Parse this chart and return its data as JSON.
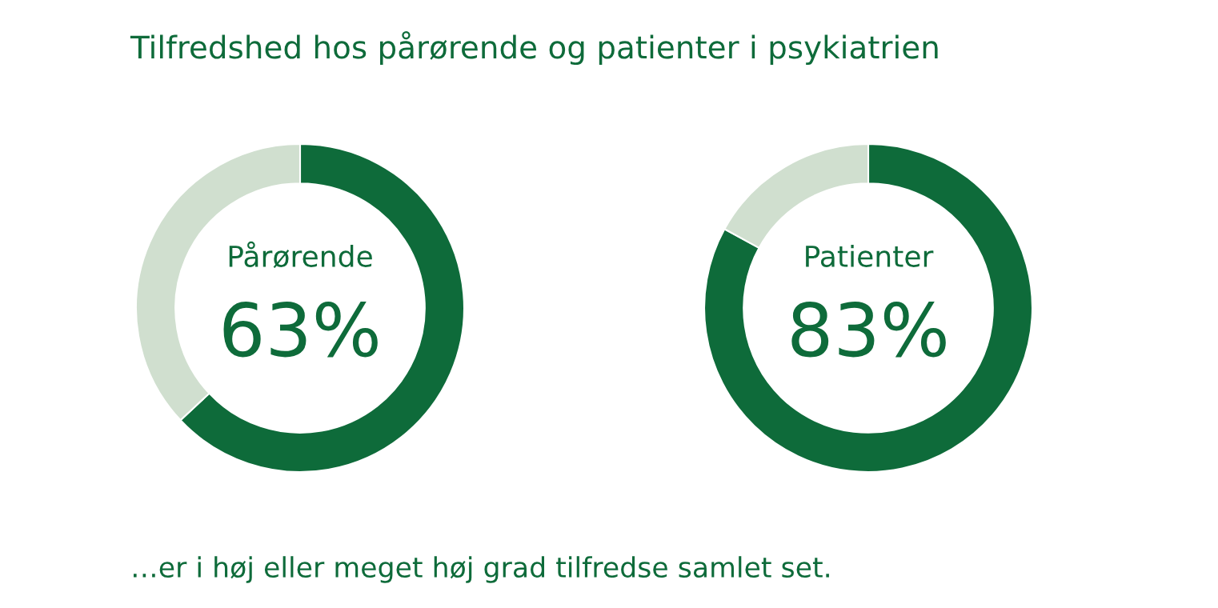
{
  "chart_data": [
    {
      "type": "donut",
      "title": "Pårørende",
      "categories": [
        null,
        null
      ],
      "values": [
        63,
        37
      ],
      "colors": [
        "#0e6b3a",
        "#d0dfcf"
      ],
      "value_labels": [
        "63%",
        null
      ],
      "annotations": [
        "Tilfredshed hos pårørende og patienter i psykiatrien"
      ]
    },
    {
      "type": "donut",
      "title": "Patienter",
      "categories": [
        null,
        null
      ],
      "values": [
        83,
        17
      ],
      "colors": [
        "#0e6b3a",
        "#d0dfcf"
      ],
      "value_labels": [
        "83%",
        null
      ],
      "annotations": [
        "…er i høj eller meget høj grad tilfredse samlet set."
      ]
    }
  ]
}
